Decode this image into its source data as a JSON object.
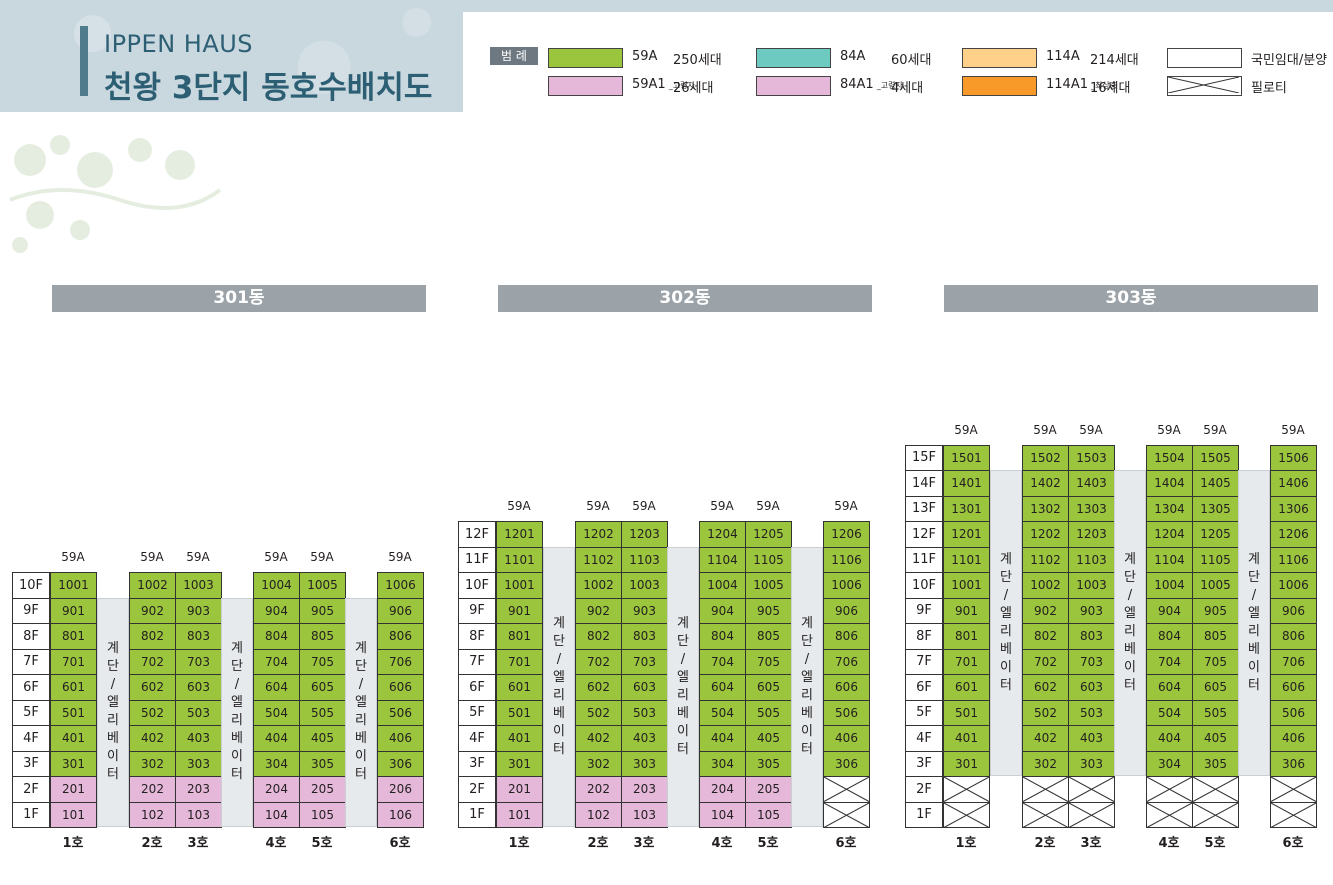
{
  "header": {
    "title_en": "IPPEN HAUS",
    "title_ko": "천왕 3단지 동호수배치도"
  },
  "legend": {
    "label": "범 례",
    "items": [
      {
        "name": "59A",
        "sub": "",
        "count": "250세대",
        "color": "#9bc53d"
      },
      {
        "name": "84A",
        "sub": "",
        "count": "60세대",
        "color": "#6ccac0"
      },
      {
        "name": "114A",
        "sub": "",
        "count": "214세대",
        "color": "#ffd08a"
      },
      {
        "name": "국민임대/분양",
        "sub": "",
        "count": "",
        "color": "#ffffff"
      },
      {
        "name": "59A1",
        "sub": "_고령자",
        "count": "26세대",
        "color": "#e5b8da"
      },
      {
        "name": "84A1",
        "sub": "_고령자",
        "count": "4세대",
        "color": "#e5b8da"
      },
      {
        "name": "114A1",
        "sub": "_최상층",
        "count": "16세대",
        "color": "#f79a2a"
      },
      {
        "name": "필로티",
        "sub": "",
        "count": "",
        "color": "#ffffff"
      }
    ]
  },
  "core_text": [
    "계",
    "단",
    "/",
    "엘",
    "리",
    "베",
    "이",
    "터"
  ],
  "buildings": [
    {
      "name": "301동",
      "floors": 10,
      "pilotis": false,
      "col6_pilotis_from": 0,
      "types": [
        "59A",
        "59A",
        "59A",
        "59A",
        "59A",
        "59A"
      ],
      "units": [
        "1호",
        "2호",
        "3호",
        "4호",
        "5호",
        "6호"
      ]
    },
    {
      "name": "302동",
      "floors": 12,
      "pilotis": false,
      "col6_pilotis_from": 2,
      "types": [
        "59A",
        "59A",
        "59A",
        "59A",
        "59A",
        "59A"
      ],
      "units": [
        "1호",
        "2호",
        "3호",
        "4호",
        "5호",
        "6호"
      ]
    },
    {
      "name": "303동",
      "floors": 15,
      "pilotis": true,
      "col6_pilotis_from": 2,
      "types": [
        "59A",
        "59A",
        "59A",
        "59A",
        "59A",
        "59A"
      ],
      "units": [
        "1호",
        "2호",
        "3호",
        "4호",
        "5호",
        "6호"
      ]
    }
  ]
}
